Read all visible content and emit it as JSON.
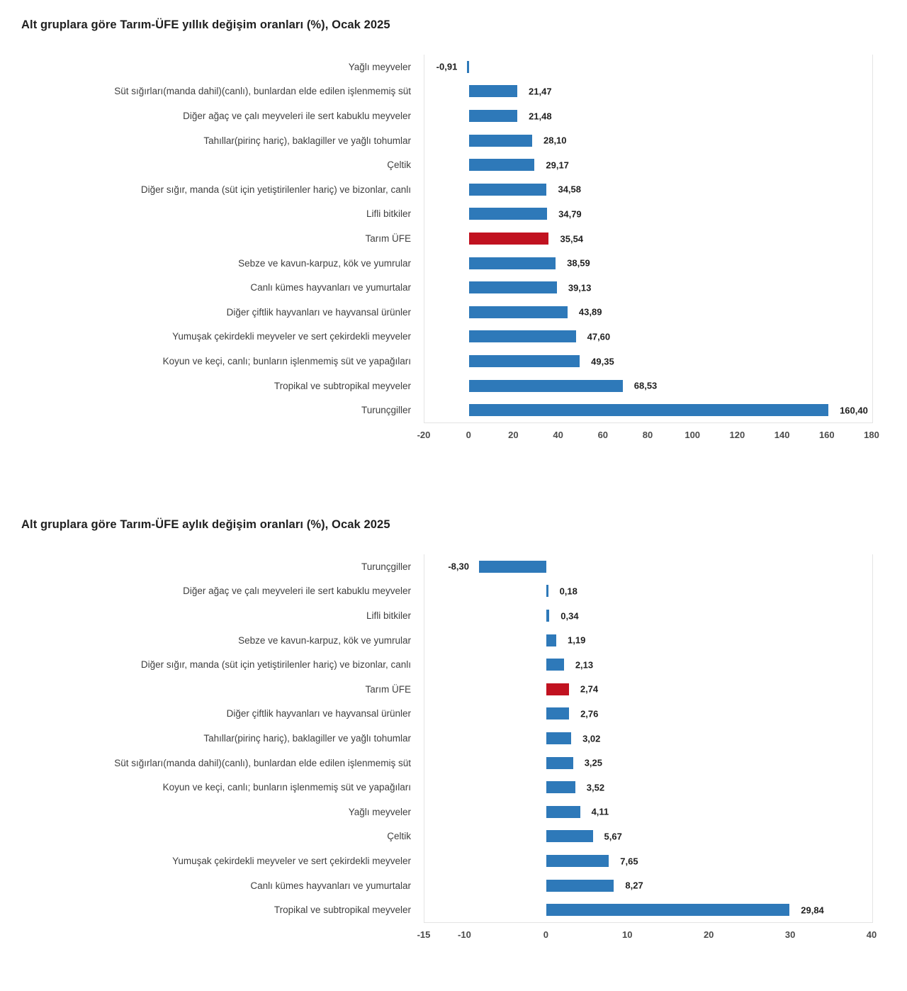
{
  "colors": {
    "bar_blue": "#2E79B9",
    "highlight_red": "#C11220",
    "axis_line": "#e4e4e4",
    "text_dark": "#1f1f1f",
    "text_label": "#3f3f3f"
  },
  "chart_data": [
    {
      "type": "bar",
      "orientation": "horizontal",
      "title": "Alt gruplara göre Tarım-ÜFE yıllık değişim oranları (%), Ocak 2025",
      "categories": [
        "Yağlı meyveler",
        "Süt sığırları(manda dahil)(canlı), bunlardan elde edilen işlenmemiş süt",
        "Diğer ağaç ve çalı meyveleri ile sert kabuklu meyveler",
        "Tahıllar(pirinç hariç), baklagiller ve yağlı tohumlar",
        "Çeltik",
        "Diğer sığır, manda (süt için yetiştirilenler hariç) ve bizonlar, canlı",
        "Lifli bitkiler",
        "Tarım ÜFE",
        "Sebze ve kavun-karpuz, kök ve yumrular",
        "Canlı kümes hayvanları ve yumurtalar",
        "Diğer çiftlik hayvanları ve hayvansal ürünler",
        "Yumuşak çekirdekli meyveler ve sert çekirdekli meyveler",
        "Koyun ve keçi, canlı; bunların işlenmemiş süt ve yapağıları",
        "Tropikal ve subtropikal meyveler",
        "Turunçgiller"
      ],
      "values": [
        -0.91,
        21.47,
        21.48,
        28.1,
        29.17,
        34.58,
        34.79,
        35.54,
        38.59,
        39.13,
        43.89,
        47.6,
        49.35,
        68.53,
        160.4
      ],
      "value_labels": [
        "-0,91",
        "21,47",
        "21,48",
        "28,10",
        "29,17",
        "34,58",
        "34,79",
        "35,54",
        "38,59",
        "39,13",
        "43,89",
        "47,60",
        "49,35",
        "68,53",
        "160,40"
      ],
      "highlight_category": "Tarım ÜFE",
      "xlim": [
        -20,
        180
      ],
      "xticks": [
        -20,
        0,
        20,
        40,
        60,
        80,
        100,
        120,
        140,
        160,
        180
      ],
      "grid": false,
      "legend": false,
      "decimal_separator": ","
    },
    {
      "type": "bar",
      "orientation": "horizontal",
      "title": "Alt gruplara göre Tarım-ÜFE aylık değişim oranları (%), Ocak 2025",
      "categories": [
        "Turunçgiller",
        "Diğer ağaç ve çalı meyveleri ile sert kabuklu meyveler",
        "Lifli bitkiler",
        "Sebze ve kavun-karpuz, kök ve yumrular",
        "Diğer sığır, manda (süt için yetiştirilenler hariç) ve bizonlar, canlı",
        "Tarım ÜFE",
        "Diğer çiftlik hayvanları ve hayvansal ürünler",
        "Tahıllar(pirinç hariç), baklagiller ve yağlı tohumlar",
        "Süt sığırları(manda dahil)(canlı), bunlardan elde edilen işlenmemiş süt",
        "Koyun ve keçi, canlı; bunların işlenmemiş süt ve yapağıları",
        "Yağlı meyveler",
        "Çeltik",
        "Yumuşak çekirdekli meyveler ve sert çekirdekli meyveler",
        "Canlı kümes hayvanları ve yumurtalar",
        "Tropikal ve subtropikal meyveler"
      ],
      "values": [
        -8.3,
        0.18,
        0.34,
        1.19,
        2.13,
        2.74,
        2.76,
        3.02,
        3.25,
        3.52,
        4.11,
        5.67,
        7.65,
        8.27,
        29.84
      ],
      "value_labels": [
        "-8,30",
        "0,18",
        "0,34",
        "1,19",
        "2,13",
        "2,74",
        "2,76",
        "3,02",
        "3,25",
        "3,52",
        "4,11",
        "5,67",
        "7,65",
        "8,27",
        "29,84"
      ],
      "highlight_category": "Tarım ÜFE",
      "xlim": [
        -15,
        40
      ],
      "xticks": [
        -15,
        -10,
        0,
        10,
        20,
        30,
        40
      ],
      "grid": false,
      "legend": false,
      "decimal_separator": ","
    }
  ]
}
